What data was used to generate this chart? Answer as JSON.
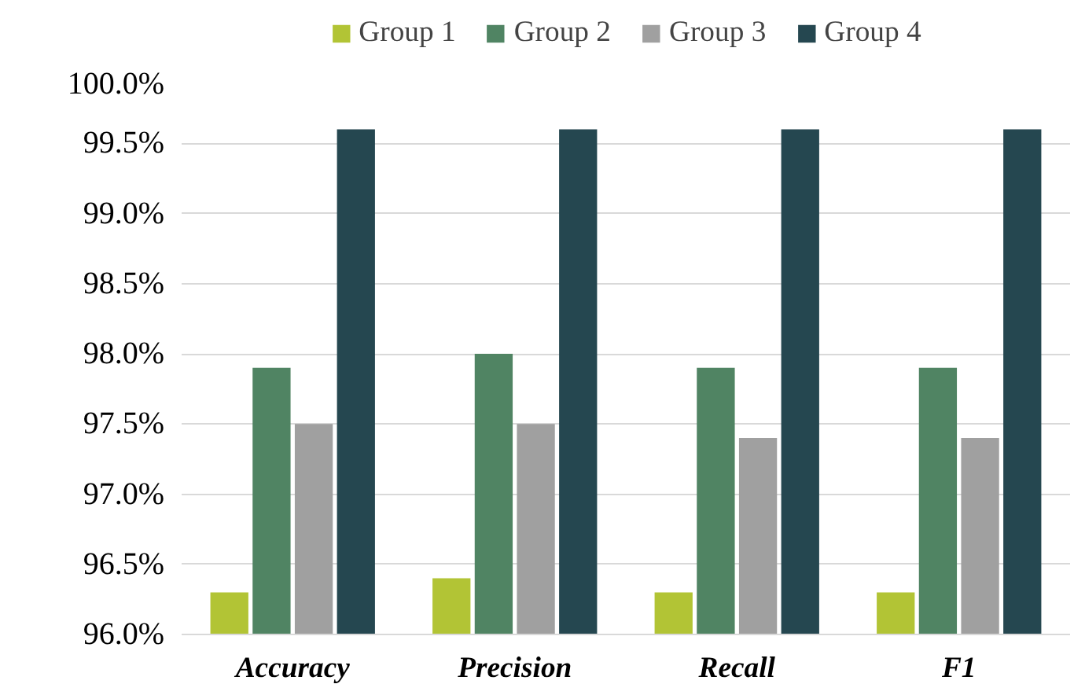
{
  "chart_data": {
    "type": "bar",
    "categories": [
      "Accuracy",
      "Precision",
      "Recall",
      "F1"
    ],
    "series": [
      {
        "name": "Group 1",
        "color": "#b2c435",
        "values": [
          96.3,
          96.4,
          96.3,
          96.3
        ]
      },
      {
        "name": "Group 2",
        "color": "#508463",
        "values": [
          97.9,
          98.0,
          97.9,
          97.9
        ]
      },
      {
        "name": "Group 3",
        "color": "#a0a0a0",
        "values": [
          97.5,
          97.5,
          97.4,
          97.4
        ]
      },
      {
        "name": "Group 4",
        "color": "#254750",
        "values": [
          99.6,
          99.6,
          99.6,
          99.6
        ]
      }
    ],
    "ylim": [
      96.0,
      100.0
    ],
    "yticks": [
      {
        "value": 96.0,
        "label": "96.0%"
      },
      {
        "value": 96.5,
        "label": "96.5%"
      },
      {
        "value": 97.0,
        "label": "97.0%"
      },
      {
        "value": 97.5,
        "label": "97.5%"
      },
      {
        "value": 98.0,
        "label": "98.0%"
      },
      {
        "value": 98.5,
        "label": "98.5%"
      },
      {
        "value": 99.0,
        "label": "99.0%"
      },
      {
        "value": 99.5,
        "label": "99.5%"
      },
      {
        "value": 100.0,
        "label": "100.0%"
      }
    ],
    "grid": "y",
    "legend": "top"
  }
}
